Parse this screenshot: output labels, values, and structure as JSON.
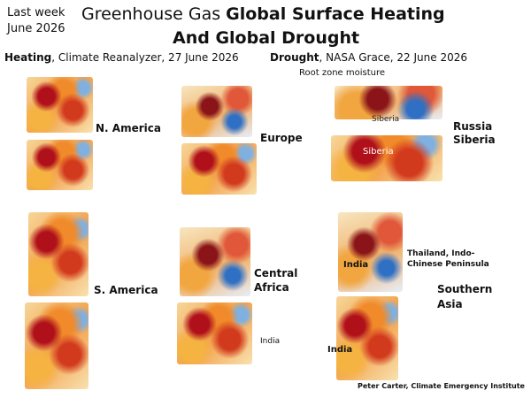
{
  "header": {
    "date_line1": "Last week",
    "date_line2": "June 2026",
    "title_plain": "Greenhouse Gas",
    "title_bold": "Global Surface Heating",
    "title_line2": "And Global Drought"
  },
  "sources": {
    "heating": {
      "label": "Heating",
      "detail": ", Climate Reanalyzer,  27 June 2026"
    },
    "drought": {
      "label": "Drought",
      "detail": ", NASA Grace, 22 June 2026"
    },
    "note": "Root zone moisture"
  },
  "regions": [
    "N. America",
    "Europe",
    "Russia Siberia",
    "S. America",
    "Central Africa",
    "Southern Asia"
  ],
  "map_labels": [
    "Siberia",
    "Siberia",
    "India",
    "Thailand, Indo-Chinese Peninsula",
    "India",
    "India"
  ],
  "credit": "Peter Carter, Climate Emergency Institute"
}
